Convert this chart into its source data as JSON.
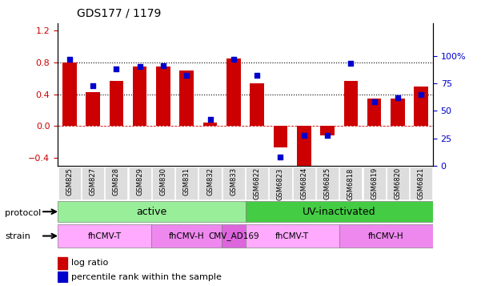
{
  "title": "GDS177 / 1179",
  "samples": [
    "GSM825",
    "GSM827",
    "GSM828",
    "GSM829",
    "GSM830",
    "GSM831",
    "GSM832",
    "GSM833",
    "GSM6822",
    "GSM6823",
    "GSM6824",
    "GSM6825",
    "GSM6818",
    "GSM6819",
    "GSM6820",
    "GSM6821"
  ],
  "log_ratio": [
    0.8,
    0.43,
    0.57,
    0.75,
    0.75,
    0.7,
    0.05,
    0.85,
    0.54,
    -0.27,
    -0.5,
    -0.12,
    0.57,
    0.35,
    0.35,
    0.5
  ],
  "percentile": [
    97,
    73,
    88,
    90,
    91,
    82,
    42,
    97,
    82,
    8,
    28,
    28,
    93,
    58,
    62,
    65
  ],
  "bar_color": "#cc0000",
  "dot_color": "#0000cc",
  "ylim_left": [
    -0.5,
    1.3
  ],
  "ylim_right": [
    0,
    130
  ],
  "yticks_left": [
    -0.4,
    0.0,
    0.4,
    0.8,
    1.2
  ],
  "yticks_right": [
    0,
    25,
    50,
    75,
    100
  ],
  "hlines": [
    0.4,
    0.8
  ],
  "protocol_active_range": [
    0,
    7
  ],
  "protocol_uv_range": [
    8,
    15
  ],
  "protocol_active_label": "active",
  "protocol_uv_label": "UV-inactivated",
  "protocol_active_color": "#99ee99",
  "protocol_uv_color": "#44cc44",
  "strain_groups": [
    {
      "label": "fhCMV-T",
      "indices": [
        0,
        3
      ],
      "color": "#ffaaff"
    },
    {
      "label": "fhCMV-H",
      "indices": [
        4,
        6
      ],
      "color": "#ee88ee"
    },
    {
      "label": "CMV_AD169",
      "indices": [
        7,
        7
      ],
      "color": "#dd66dd"
    },
    {
      "label": "fhCMV-T",
      "indices": [
        8,
        11
      ],
      "color": "#ffaaff"
    },
    {
      "label": "fhCMV-H",
      "indices": [
        12,
        15
      ],
      "color": "#ee88ee"
    }
  ],
  "protocol_label": "protocol",
  "strain_label": "strain",
  "legend_logratio": "log ratio",
  "legend_percentile": "percentile rank within the sample",
  "tick_label_color_left": "#cc0000",
  "tick_label_color_right": "#0000cc",
  "background_color": "#ffffff",
  "xticklabel_bg": "#dddddd"
}
